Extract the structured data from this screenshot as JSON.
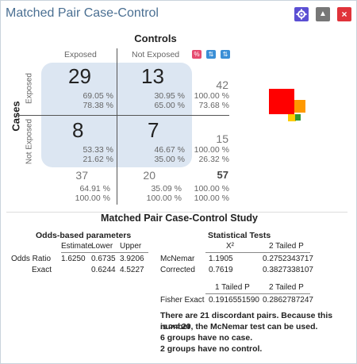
{
  "window": {
    "title": "Matched Pair Case-Control",
    "buttons": {
      "gear": "gear-icon",
      "collapse": "▲",
      "close": "×"
    }
  },
  "table": {
    "controls_title": "Controls",
    "cases_title": "Cases",
    "col_headers": [
      "Exposed",
      "Not Exposed"
    ],
    "row_headers": [
      "Exposed",
      "Not Exposed"
    ],
    "toolbar": {
      "percent": "%",
      "sort_a": "⇅",
      "sort_b": "⇅"
    },
    "cells": [
      {
        "count": "29",
        "row_pct": "69.05 %",
        "col_pct": "78.38 %"
      },
      {
        "count": "13",
        "row_pct": "30.95 %",
        "col_pct": "65.00 %"
      },
      {
        "count": "8",
        "row_pct": "53.33 %",
        "col_pct": "21.62 %"
      },
      {
        "count": "7",
        "row_pct": "46.67 %",
        "col_pct": "35.00 %"
      }
    ],
    "row_totals": [
      {
        "count": "42",
        "pct1": "100.00 %",
        "pct2": "73.68 %"
      },
      {
        "count": "15",
        "pct1": "100.00 %",
        "pct2": "26.32 %"
      }
    ],
    "col_totals": [
      {
        "count": "37",
        "pct1": "64.91 %",
        "pct2": "100.00 %"
      },
      {
        "count": "20",
        "pct1": "35.09 %",
        "pct2": "100.00 %"
      }
    ],
    "grand_total": {
      "count": "57",
      "pct1": "100.00 %",
      "pct2": "100.00 %"
    }
  },
  "colors": {
    "accent": "#4a6f92",
    "cell_bg": "#dce6f2",
    "close": "#e0333a",
    "gear": "#5b4fd3"
  },
  "study": {
    "title": "Matched Pair Case-Control Study",
    "odds": {
      "title": "Odds-based parameters",
      "headers": [
        "Estimate",
        "Lower",
        "Upper"
      ],
      "rows": [
        {
          "label": "Odds Ratio",
          "estimate": "1.6250",
          "lower": "0.6735",
          "upper": "3.9206"
        },
        {
          "label": "Exact",
          "estimate": "",
          "lower": "0.6244",
          "upper": "4.5227"
        }
      ]
    },
    "tests": {
      "title": "Statistical Tests",
      "headers": [
        "X²",
        "2 Tailed P"
      ],
      "rows": [
        {
          "label": "McNemar",
          "x2": "1.1905",
          "p": "0.2752343717"
        },
        {
          "label": "Corrected",
          "x2": "0.7619",
          "p": "0.3827338107"
        }
      ],
      "fisher_headers": [
        "1 Tailed P",
        "2 Tailed P"
      ],
      "fisher": {
        "label": "Fisher Exact",
        "p1": "0.1916551590",
        "p2": "0.2862787247"
      }
    },
    "notes": [
      "There are 21 discordant pairs.  Because this number",
      "is  >= 20, the McNemar test can be used.",
      "6 groups have no case.",
      "2 groups have no control."
    ]
  }
}
